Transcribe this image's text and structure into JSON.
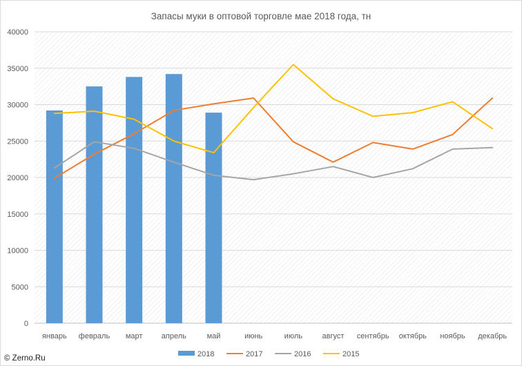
{
  "chart_data": {
    "type": "bar",
    "title": "Запасы муки в оптовой торговле мае 2018 года, тн",
    "categories": [
      "январь",
      "февраль",
      "март",
      "апрель",
      "май",
      "июнь",
      "июль",
      "август",
      "сентябрь",
      "октябрь",
      "ноябрь",
      "декабрь"
    ],
    "ylim": [
      0,
      40000
    ],
    "yticks": [
      0,
      5000,
      10000,
      15000,
      20000,
      25000,
      30000,
      35000,
      40000
    ],
    "grid": true,
    "legend": "bottom",
    "series": [
      {
        "name": "2018",
        "type": "bar",
        "color": "#5b9bd5",
        "values": [
          29200,
          32500,
          33800,
          34200,
          28900,
          null,
          null,
          null,
          null,
          null,
          null,
          null
        ]
      },
      {
        "name": "2017",
        "type": "line",
        "color": "#ed7d31",
        "values": [
          19900,
          23200,
          26000,
          29200,
          30100,
          30900,
          24900,
          22100,
          24800,
          23900,
          25900,
          30900
        ]
      },
      {
        "name": "2016",
        "type": "line",
        "color": "#a5a5a5",
        "values": [
          21300,
          24900,
          24000,
          22100,
          20300,
          19700,
          20500,
          21500,
          20000,
          21200,
          23900,
          24100
        ]
      },
      {
        "name": "2015",
        "type": "line",
        "color": "#ffc000",
        "values": [
          28800,
          29100,
          28000,
          25000,
          23400,
          29600,
          35500,
          30800,
          28400,
          28900,
          30400,
          26700
        ]
      }
    ]
  },
  "watermark": "© Zerno.Ru"
}
